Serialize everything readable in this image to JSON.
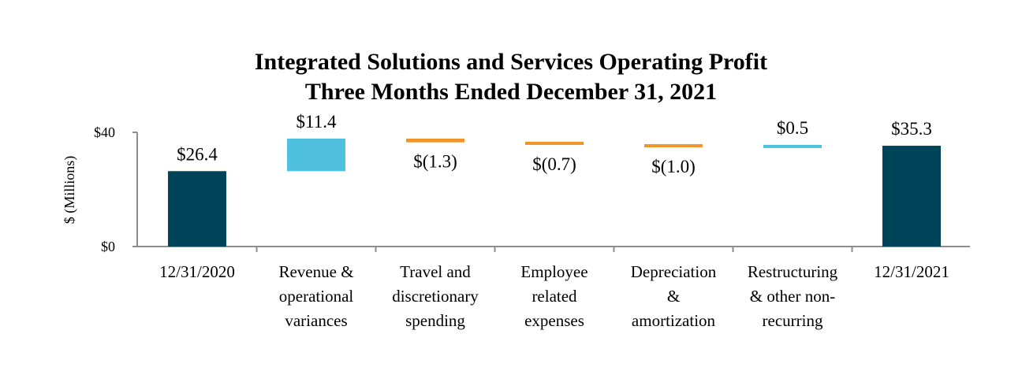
{
  "chart_data": {
    "type": "bar",
    "subtype": "waterfall",
    "title_lines": [
      "Integrated Solutions and Services Operating Profit",
      "Three Months Ended December 31, 2021"
    ],
    "ylabel": "$ (Millions)",
    "xlabel": "",
    "ylim": [
      0,
      40
    ],
    "y_ticks": [
      {
        "value": 0,
        "label": "$0"
      },
      {
        "value": 40,
        "label": "$40"
      }
    ],
    "grid": false,
    "categories": [
      [
        "12/31/2020"
      ],
      [
        "Revenue &",
        "operational",
        "variances"
      ],
      [
        "Travel and",
        "discretionary",
        "spending"
      ],
      [
        "Employee",
        "related",
        "expenses"
      ],
      [
        "Depreciation",
        "&",
        "amortization"
      ],
      [
        "Restructuring",
        "& other non-",
        "recurring"
      ],
      [
        "12/31/2021"
      ]
    ],
    "steps": [
      {
        "kind": "total",
        "value": 26.4,
        "label": "$26.4"
      },
      {
        "kind": "delta",
        "value": 11.4,
        "label": "$11.4"
      },
      {
        "kind": "delta",
        "value": -1.3,
        "label": "$(1.3)"
      },
      {
        "kind": "delta",
        "value": -0.7,
        "label": "$(0.7)"
      },
      {
        "kind": "delta",
        "value": -1.0,
        "label": "$(1.0)"
      },
      {
        "kind": "delta",
        "value": 0.5,
        "label": "$0.5"
      },
      {
        "kind": "total",
        "value": 35.3,
        "label": "$35.3"
      }
    ],
    "colors": {
      "total": "#00445A",
      "increase": "#4FC1DF",
      "decrease": "#F0952A",
      "axis": "#8C8C8C",
      "text": "#000000"
    }
  }
}
